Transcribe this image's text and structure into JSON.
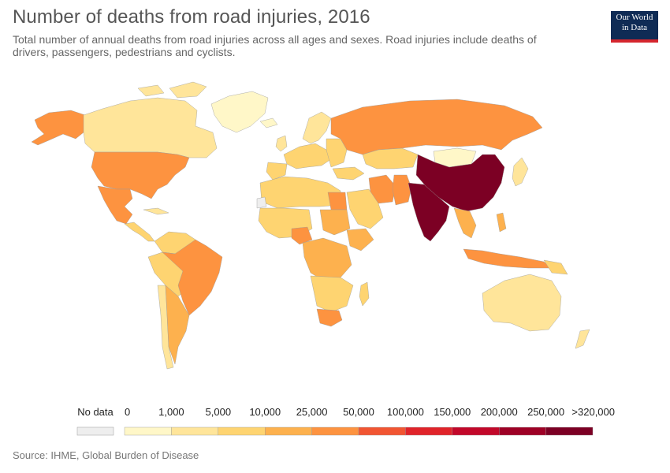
{
  "header": {
    "title": "Number of deaths from road injuries, 2016",
    "subtitle": "Total number of annual deaths from road injuries across all ages and sexes. Road injuries include deaths of drivers, passengers, pedestrians and cyclists.",
    "logo_line1": "Our World",
    "logo_line2": "in Data"
  },
  "legend": {
    "no_data_label": "No data",
    "no_data_color": "#eeeeee",
    "breaks": [
      "0",
      "1,000",
      "5,000",
      "10,000",
      "25,000",
      "50,000",
      "100,000",
      "150,000",
      "200,000",
      "250,000",
      ">320,000"
    ],
    "colors": [
      "#fff7c8",
      "#ffe59a",
      "#fed471",
      "#fdb14e",
      "#fd9340",
      "#f15532",
      "#e0232a",
      "#c2082a",
      "#9e0126",
      "#7c0024"
    ]
  },
  "footer": {
    "source": "Source: IHME, Global Burden of Disease"
  }
}
